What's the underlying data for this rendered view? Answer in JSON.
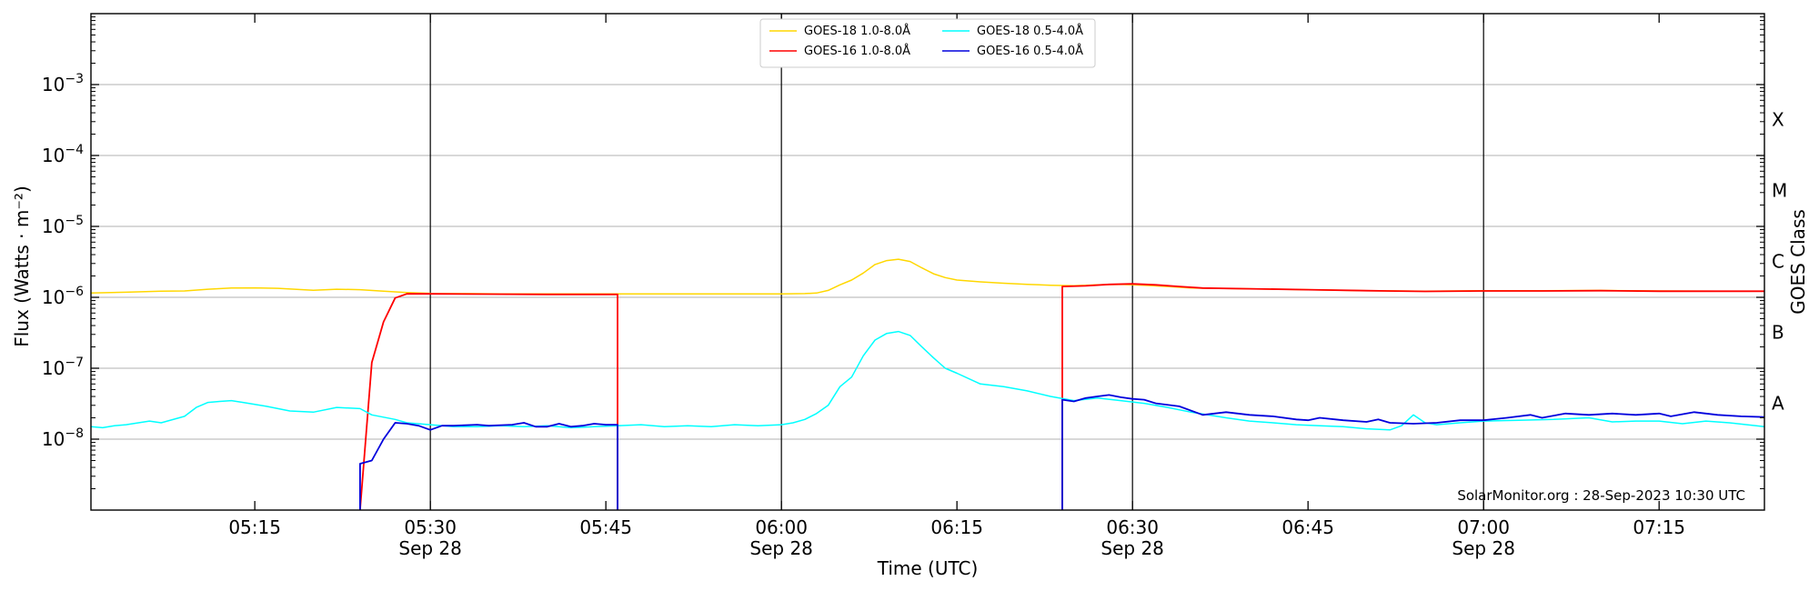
{
  "chart_data": {
    "type": "line",
    "xlabel": "Time (UTC)",
    "ylabel": "Flux (Watts · m⁻²)",
    "right_label": "GOES Class",
    "credit": "SolarMonitor.org : 28-Sep-2023 10:30 UTC",
    "y_scale": "log",
    "ylim": [
      1e-09,
      0.01
    ],
    "xlim": [
      "05:01",
      "07:24"
    ],
    "grid": "horizontal at decades, vertical at half hours",
    "legend_position": "top-center",
    "y_ticks": [
      {
        "value": 1e-08,
        "base": "10",
        "exp": "−8"
      },
      {
        "value": 1e-07,
        "base": "10",
        "exp": "−7"
      },
      {
        "value": 1e-06,
        "base": "10",
        "exp": "−6"
      },
      {
        "value": 1e-05,
        "base": "10",
        "exp": "−5"
      },
      {
        "value": 0.0001,
        "base": "10",
        "exp": "−4"
      },
      {
        "value": 0.001,
        "base": "10",
        "exp": "−3"
      }
    ],
    "x_ticks": [
      {
        "time": "05:15",
        "label": "05:15",
        "sub": ""
      },
      {
        "time": "05:30",
        "label": "05:30",
        "sub": "Sep 28"
      },
      {
        "time": "05:45",
        "label": "05:45",
        "sub": ""
      },
      {
        "time": "06:00",
        "label": "06:00",
        "sub": "Sep 28"
      },
      {
        "time": "06:15",
        "label": "06:15",
        "sub": ""
      },
      {
        "time": "06:30",
        "label": "06:30",
        "sub": "Sep 28"
      },
      {
        "time": "06:45",
        "label": "06:45",
        "sub": ""
      },
      {
        "time": "07:00",
        "label": "07:00",
        "sub": "Sep 28"
      },
      {
        "time": "07:15",
        "label": "07:15",
        "sub": ""
      }
    ],
    "goes_classes": [
      {
        "label": "X",
        "value": 0.0001
      },
      {
        "label": "M",
        "value": 1e-05
      },
      {
        "label": "C",
        "value": 1e-06
      },
      {
        "label": "B",
        "value": 1e-07
      },
      {
        "label": "A",
        "value": 1e-08
      }
    ],
    "series": [
      {
        "name": "GOES-18 1.0-8.0Å",
        "color": "#FFD700",
        "points": [
          [
            "05:01",
            1.15e-06
          ],
          [
            "05:04",
            1.18e-06
          ],
          [
            "05:07",
            1.22e-06
          ],
          [
            "05:09",
            1.23e-06
          ],
          [
            "05:11",
            1.3e-06
          ],
          [
            "05:13",
            1.35e-06
          ],
          [
            "05:15",
            1.36e-06
          ],
          [
            "05:17",
            1.34e-06
          ],
          [
            "05:20",
            1.26e-06
          ],
          [
            "05:22",
            1.3e-06
          ],
          [
            "05:24",
            1.28e-06
          ],
          [
            "05:26",
            1.22e-06
          ],
          [
            "05:28",
            1.17e-06
          ],
          [
            "05:30",
            1.14e-06
          ],
          [
            "05:33",
            1.13e-06
          ],
          [
            "05:36",
            1.12e-06
          ],
          [
            "05:40",
            1.12e-06
          ],
          [
            "05:45",
            1.12e-06
          ],
          [
            "05:50",
            1.12e-06
          ],
          [
            "05:55",
            1.12e-06
          ],
          [
            "06:00",
            1.12e-06
          ],
          [
            "06:02",
            1.13e-06
          ],
          [
            "06:03",
            1.15e-06
          ],
          [
            "06:04",
            1.25e-06
          ],
          [
            "06:05",
            1.5e-06
          ],
          [
            "06:06",
            1.75e-06
          ],
          [
            "06:07",
            2.2e-06
          ],
          [
            "06:08",
            2.9e-06
          ],
          [
            "06:09",
            3.3e-06
          ],
          [
            "06:10",
            3.45e-06
          ],
          [
            "06:11",
            3.2e-06
          ],
          [
            "06:12",
            2.6e-06
          ],
          [
            "06:13",
            2.15e-06
          ],
          [
            "06:14",
            1.9e-06
          ],
          [
            "06:15",
            1.75e-06
          ],
          [
            "06:17",
            1.65e-06
          ],
          [
            "06:19",
            1.58e-06
          ],
          [
            "06:21",
            1.52e-06
          ],
          [
            "06:23",
            1.48e-06
          ],
          [
            "06:25",
            1.46e-06
          ],
          [
            "06:27",
            1.5e-06
          ],
          [
            "06:29",
            1.52e-06
          ],
          [
            "06:31",
            1.48e-06
          ],
          [
            "06:33",
            1.42e-06
          ],
          [
            "06:35",
            1.35e-06
          ],
          [
            "06:40",
            1.32e-06
          ],
          [
            "06:45",
            1.28e-06
          ],
          [
            "06:50",
            1.24e-06
          ],
          [
            "06:55",
            1.22e-06
          ],
          [
            "07:00",
            1.24e-06
          ],
          [
            "07:05",
            1.24e-06
          ],
          [
            "07:10",
            1.25e-06
          ],
          [
            "07:15",
            1.23e-06
          ],
          [
            "07:20",
            1.22e-06
          ],
          [
            "07:24",
            1.22e-06
          ]
        ]
      },
      {
        "name": "GOES-16 1.0-8.0Å",
        "color": "#FF0000",
        "segments": [
          [
            [
              "05:24",
              1e-09
            ],
            [
              "05:25",
              1.2e-07
            ],
            [
              "05:26",
              4.5e-07
            ],
            [
              "05:27",
              9.8e-07
            ],
            [
              "05:28",
              1.12e-06
            ],
            [
              "05:30",
              1.12e-06
            ],
            [
              "05:35",
              1.11e-06
            ],
            [
              "05:40",
              1.1e-06
            ],
            [
              "05:46",
              1.1e-06
            ],
            [
              "05:46",
              1e-09
            ]
          ],
          [
            [
              "06:24",
              1e-09
            ],
            [
              "06:24",
              1.42e-06
            ],
            [
              "06:26",
              1.45e-06
            ],
            [
              "06:28",
              1.52e-06
            ],
            [
              "06:30",
              1.55e-06
            ],
            [
              "06:32",
              1.5e-06
            ],
            [
              "06:34",
              1.42e-06
            ],
            [
              "06:36",
              1.35e-06
            ],
            [
              "06:40",
              1.32e-06
            ],
            [
              "06:45",
              1.28e-06
            ],
            [
              "06:50",
              1.24e-06
            ],
            [
              "06:55",
              1.21e-06
            ],
            [
              "07:00",
              1.23e-06
            ],
            [
              "07:05",
              1.23e-06
            ],
            [
              "07:10",
              1.24e-06
            ],
            [
              "07:15",
              1.22e-06
            ],
            [
              "07:20",
              1.22e-06
            ],
            [
              "07:24",
              1.22e-06
            ]
          ]
        ]
      },
      {
        "name": "GOES-18 0.5-4.0Å",
        "color": "#00FFFF",
        "points": [
          [
            "05:01",
            1.5e-08
          ],
          [
            "05:02",
            1.45e-08
          ],
          [
            "05:03",
            1.55e-08
          ],
          [
            "05:04",
            1.6e-08
          ],
          [
            "05:06",
            1.8e-08
          ],
          [
            "05:07",
            1.7e-08
          ],
          [
            "05:09",
            2.1e-08
          ],
          [
            "05:10",
            2.8e-08
          ],
          [
            "05:11",
            3.3e-08
          ],
          [
            "05:12",
            3.4e-08
          ],
          [
            "05:13",
            3.5e-08
          ],
          [
            "05:14",
            3.3e-08
          ],
          [
            "05:16",
            2.9e-08
          ],
          [
            "05:18",
            2.5e-08
          ],
          [
            "05:20",
            2.4e-08
          ],
          [
            "05:22",
            2.8e-08
          ],
          [
            "05:24",
            2.7e-08
          ],
          [
            "05:25",
            2.2e-08
          ],
          [
            "05:27",
            1.9e-08
          ],
          [
            "05:28",
            1.7e-08
          ],
          [
            "05:30",
            1.6e-08
          ],
          [
            "05:32",
            1.5e-08
          ],
          [
            "05:34",
            1.5e-08
          ],
          [
            "05:36",
            1.55e-08
          ],
          [
            "05:38",
            1.5e-08
          ],
          [
            "05:40",
            1.55e-08
          ],
          [
            "05:42",
            1.45e-08
          ],
          [
            "05:44",
            1.5e-08
          ],
          [
            "05:46",
            1.55e-08
          ],
          [
            "05:48",
            1.6e-08
          ],
          [
            "05:50",
            1.5e-08
          ],
          [
            "05:52",
            1.55e-08
          ],
          [
            "05:54",
            1.5e-08
          ],
          [
            "05:56",
            1.6e-08
          ],
          [
            "05:58",
            1.55e-08
          ],
          [
            "06:00",
            1.6e-08
          ],
          [
            "06:01",
            1.7e-08
          ],
          [
            "06:02",
            1.9e-08
          ],
          [
            "06:03",
            2.3e-08
          ],
          [
            "06:04",
            3e-08
          ],
          [
            "06:05",
            5.5e-08
          ],
          [
            "06:06",
            7.5e-08
          ],
          [
            "06:07",
            1.5e-07
          ],
          [
            "06:08",
            2.5e-07
          ],
          [
            "06:09",
            3.1e-07
          ],
          [
            "06:10",
            3.3e-07
          ],
          [
            "06:11",
            2.9e-07
          ],
          [
            "06:12",
            2e-07
          ],
          [
            "06:13",
            1.4e-07
          ],
          [
            "06:14",
            1e-07
          ],
          [
            "06:15",
            8.5e-08
          ],
          [
            "06:17",
            6e-08
          ],
          [
            "06:19",
            5.5e-08
          ],
          [
            "06:21",
            4.8e-08
          ],
          [
            "06:23",
            4e-08
          ],
          [
            "06:25",
            3.5e-08
          ],
          [
            "06:27",
            3.8e-08
          ],
          [
            "06:29",
            3.5e-08
          ],
          [
            "06:31",
            3.2e-08
          ],
          [
            "06:33",
            2.8e-08
          ],
          [
            "06:35",
            2.4e-08
          ],
          [
            "06:38",
            2e-08
          ],
          [
            "06:40",
            1.8e-08
          ],
          [
            "06:42",
            1.7e-08
          ],
          [
            "06:44",
            1.6e-08
          ],
          [
            "06:46",
            1.55e-08
          ],
          [
            "06:48",
            1.5e-08
          ],
          [
            "06:50",
            1.4e-08
          ],
          [
            "06:52",
            1.35e-08
          ],
          [
            "06:53",
            1.55e-08
          ],
          [
            "06:54",
            2.2e-08
          ],
          [
            "06:55",
            1.7e-08
          ],
          [
            "06:56",
            1.6e-08
          ],
          [
            "06:58",
            1.7e-08
          ],
          [
            "07:00",
            1.8e-08
          ],
          [
            "07:03",
            1.85e-08
          ],
          [
            "07:06",
            1.9e-08
          ],
          [
            "07:09",
            2e-08
          ],
          [
            "07:11",
            1.75e-08
          ],
          [
            "07:13",
            1.8e-08
          ],
          [
            "07:15",
            1.8e-08
          ],
          [
            "07:17",
            1.65e-08
          ],
          [
            "07:19",
            1.8e-08
          ],
          [
            "07:21",
            1.7e-08
          ],
          [
            "07:24",
            1.5e-08
          ]
        ]
      },
      {
        "name": "GOES-16 0.5-4.0Å",
        "color": "#0000DD",
        "segments": [
          [
            [
              "05:24",
              1e-09
            ],
            [
              "05:24",
              4.5e-09
            ],
            [
              "05:25",
              5e-09
            ],
            [
              "05:26",
              1e-08
            ],
            [
              "05:27",
              1.7e-08
            ],
            [
              "05:28",
              1.65e-08
            ],
            [
              "05:29",
              1.55e-08
            ],
            [
              "05:30",
              1.35e-08
            ],
            [
              "05:31",
              1.55e-08
            ],
            [
              "05:32",
              1.55e-08
            ],
            [
              "05:34",
              1.6e-08
            ],
            [
              "05:35",
              1.55e-08
            ],
            [
              "05:37",
              1.6e-08
            ],
            [
              "05:38",
              1.7e-08
            ],
            [
              "05:39",
              1.5e-08
            ],
            [
              "05:40",
              1.5e-08
            ],
            [
              "05:41",
              1.65e-08
            ],
            [
              "05:42",
              1.5e-08
            ],
            [
              "05:43",
              1.55e-08
            ],
            [
              "05:44",
              1.65e-08
            ],
            [
              "05:45",
              1.6e-08
            ],
            [
              "05:46",
              1.6e-08
            ],
            [
              "05:46",
              1e-09
            ]
          ],
          [
            [
              "06:24",
              1e-09
            ],
            [
              "06:24",
              3.6e-08
            ],
            [
              "06:25",
              3.4e-08
            ],
            [
              "06:26",
              3.8e-08
            ],
            [
              "06:27",
              4e-08
            ],
            [
              "06:28",
              4.2e-08
            ],
            [
              "06:29",
              3.9e-08
            ],
            [
              "06:30",
              3.7e-08
            ],
            [
              "06:31",
              3.6e-08
            ],
            [
              "06:32",
              3.2e-08
            ],
            [
              "06:34",
              2.9e-08
            ],
            [
              "06:36",
              2.2e-08
            ],
            [
              "06:38",
              2.4e-08
            ],
            [
              "06:40",
              2.2e-08
            ],
            [
              "06:42",
              2.1e-08
            ],
            [
              "06:44",
              1.9e-08
            ],
            [
              "06:45",
              1.85e-08
            ],
            [
              "06:46",
              2e-08
            ],
            [
              "06:48",
              1.85e-08
            ],
            [
              "06:50",
              1.75e-08
            ],
            [
              "06:51",
              1.9e-08
            ],
            [
              "06:52",
              1.7e-08
            ],
            [
              "06:54",
              1.65e-08
            ],
            [
              "06:56",
              1.7e-08
            ],
            [
              "06:58",
              1.85e-08
            ],
            [
              "07:00",
              1.85e-08
            ],
            [
              "07:02",
              2e-08
            ],
            [
              "07:04",
              2.2e-08
            ],
            [
              "07:05",
              2e-08
            ],
            [
              "07:07",
              2.3e-08
            ],
            [
              "07:09",
              2.2e-08
            ],
            [
              "07:11",
              2.3e-08
            ],
            [
              "07:13",
              2.2e-08
            ],
            [
              "07:15",
              2.3e-08
            ],
            [
              "07:16",
              2.1e-08
            ],
            [
              "07:18",
              2.4e-08
            ],
            [
              "07:20",
              2.2e-08
            ],
            [
              "07:22",
              2.1e-08
            ],
            [
              "07:24",
              2.05e-08
            ]
          ]
        ]
      }
    ]
  }
}
